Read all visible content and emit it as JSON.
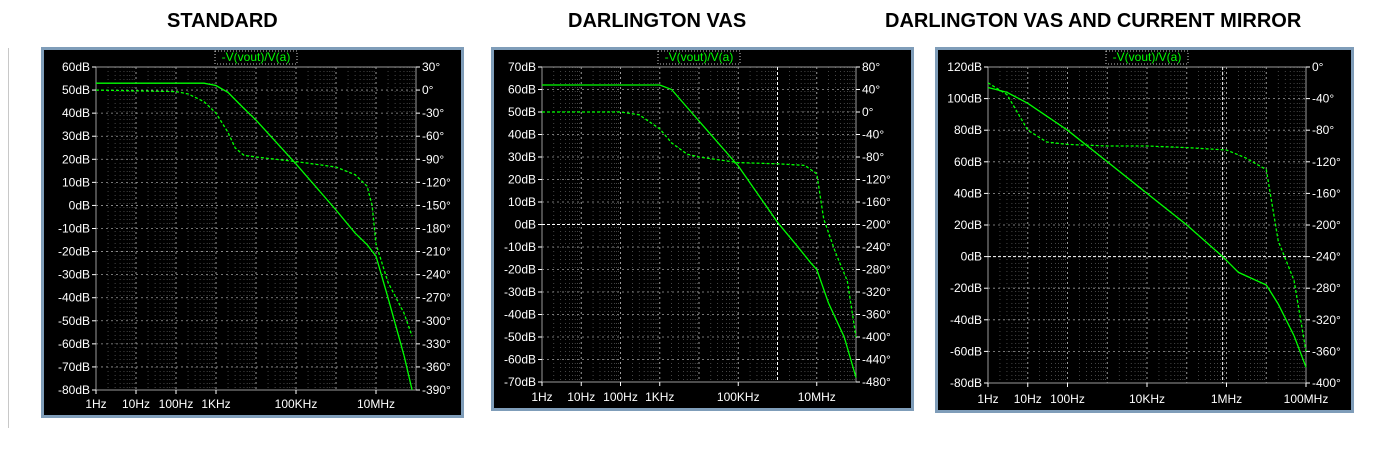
{
  "titles": [
    "STANDARD",
    "DARLINGTON VAS",
    "DARLINGTON VAS AND CURRENT MIRROR"
  ],
  "colors": {
    "background": "#000000",
    "frame": "#7f9db9",
    "grid": "#9a9a9a",
    "text": "#ffffff",
    "trace": "#00ff00",
    "crosshair": "#ffffff"
  },
  "chart_data": [
    {
      "type": "line",
      "title": "-V(vout)/V(a)",
      "x_scale": "log",
      "xlim": [
        1,
        100000000
      ],
      "x_ticks": [
        {
          "v": 1,
          "label": "1Hz"
        },
        {
          "v": 10,
          "label": "10Hz"
        },
        {
          "v": 100,
          "label": "100Hz"
        },
        {
          "v": 1000,
          "label": "1KHz"
        },
        {
          "v": 100000,
          "label": "100KHz"
        },
        {
          "v": 10000000,
          "label": "10MHz"
        }
      ],
      "ylim_left": [
        -80,
        60
      ],
      "ylim_right": [
        -390,
        30
      ],
      "y_ticks_left": [
        "60dB",
        "50dB",
        "40dB",
        "30dB",
        "20dB",
        "10dB",
        "0dB",
        "-10dB",
        "-20dB",
        "-30dB",
        "-40dB",
        "-50dB",
        "-60dB",
        "-70dB",
        "-80dB"
      ],
      "y_ticks_right": [
        "30°",
        "0°",
        "-30°",
        "-60°",
        "-90°",
        "-120°",
        "-150°",
        "-180°",
        "-210°",
        "-240°",
        "-270°",
        "-300°",
        "-330°",
        "-360°",
        "-390°"
      ],
      "crosshair": null,
      "series": [
        {
          "style": "solid",
          "axis": "left",
          "points": [
            [
              1,
              53
            ],
            [
              500,
              53
            ],
            [
              1000,
              52
            ],
            [
              2000,
              49
            ],
            [
              5000,
              42
            ],
            [
              10000,
              37
            ],
            [
              100000,
              18
            ],
            [
              1000000,
              -2
            ],
            [
              3000000,
              -12
            ],
            [
              6000000,
              -17
            ],
            [
              10000000,
              -22
            ],
            [
              20000000,
              -40
            ],
            [
              50000000,
              -65
            ],
            [
              80000000,
              -80
            ]
          ]
        },
        {
          "style": "dashed",
          "axis": "right",
          "points": [
            [
              1,
              0
            ],
            [
              100,
              -2
            ],
            [
              200,
              -5
            ],
            [
              500,
              -15
            ],
            [
              1000,
              -30
            ],
            [
              2000,
              -55
            ],
            [
              3000,
              -75
            ],
            [
              5000,
              -85
            ],
            [
              10000,
              -87
            ],
            [
              100000,
              -93
            ],
            [
              1000000,
              -100
            ],
            [
              3000000,
              -110
            ],
            [
              6000000,
              -125
            ],
            [
              8000000,
              -150
            ],
            [
              10000000,
              -200
            ],
            [
              20000000,
              -250
            ],
            [
              50000000,
              -290
            ],
            [
              80000000,
              -320
            ]
          ]
        }
      ]
    },
    {
      "type": "line",
      "title": "-V(vout)/V(a)",
      "x_scale": "log",
      "xlim": [
        1,
        100000000
      ],
      "x_ticks": [
        {
          "v": 1,
          "label": "1Hz"
        },
        {
          "v": 10,
          "label": "10Hz"
        },
        {
          "v": 100,
          "label": "100Hz"
        },
        {
          "v": 1000,
          "label": "1KHz"
        },
        {
          "v": 100000,
          "label": "100KHz"
        },
        {
          "v": 10000000,
          "label": "10MHz"
        }
      ],
      "ylim_left": [
        -70,
        70
      ],
      "ylim_right": [
        -480,
        80
      ],
      "y_ticks_left": [
        "70dB",
        "60dB",
        "50dB",
        "40dB",
        "30dB",
        "20dB",
        "10dB",
        "0dB",
        "-10dB",
        "-20dB",
        "-30dB",
        "-40dB",
        "-50dB",
        "-60dB",
        "-70dB"
      ],
      "y_ticks_right": [
        "80°",
        "40°",
        "0°",
        "-40°",
        "-80°",
        "-120°",
        "-160°",
        "-200°",
        "-240°",
        "-280°",
        "-320°",
        "-360°",
        "-400°",
        "-440°",
        "-480°"
      ],
      "crosshair": {
        "x": 1000000,
        "y": 0
      },
      "series": [
        {
          "style": "solid",
          "axis": "left",
          "points": [
            [
              1,
              62
            ],
            [
              1000,
              62
            ],
            [
              2000,
              60
            ],
            [
              5000,
              52
            ],
            [
              10000,
              46
            ],
            [
              100000,
              26
            ],
            [
              1000000,
              1
            ],
            [
              3000000,
              -9
            ],
            [
              7000000,
              -17
            ],
            [
              10000000,
              -20
            ],
            [
              20000000,
              -35
            ],
            [
              50000000,
              -50
            ],
            [
              100000000,
              -68
            ]
          ]
        },
        {
          "style": "dashed",
          "axis": "right",
          "points": [
            [
              1,
              0
            ],
            [
              100,
              0
            ],
            [
              300,
              -5
            ],
            [
              1000,
              -30
            ],
            [
              2000,
              -55
            ],
            [
              5000,
              -75
            ],
            [
              10000,
              -80
            ],
            [
              100000,
              -90
            ],
            [
              1000000,
              -92
            ],
            [
              5000000,
              -95
            ],
            [
              10000000,
              -110
            ],
            [
              15000000,
              -190
            ],
            [
              30000000,
              -250
            ],
            [
              60000000,
              -300
            ],
            [
              100000000,
              -400
            ]
          ]
        }
      ]
    },
    {
      "type": "line",
      "title": "-V(vout)/V(a)",
      "x_scale": "log",
      "xlim": [
        1,
        100000000
      ],
      "x_ticks": [
        {
          "v": 1,
          "label": "1Hz"
        },
        {
          "v": 10,
          "label": "10Hz"
        },
        {
          "v": 100,
          "label": "100Hz"
        },
        {
          "v": 10000,
          "label": "10KHz"
        },
        {
          "v": 1000000,
          "label": "1MHz"
        },
        {
          "v": 100000000,
          "label": "100MHz"
        }
      ],
      "ylim_left": [
        -80,
        120
      ],
      "ylim_right": [
        -400,
        0
      ],
      "y_ticks_left": [
        "120dB",
        "100dB",
        "80dB",
        "60dB",
        "40dB",
        "20dB",
        "0dB",
        "-20dB",
        "-40dB",
        "-60dB",
        "-80dB"
      ],
      "y_ticks_right": [
        "0°",
        "-40°",
        "-80°",
        "-120°",
        "-160°",
        "-200°",
        "-240°",
        "-280°",
        "-320°",
        "-360°",
        "-400°"
      ],
      "crosshair": {
        "x": 800000,
        "y": 0
      },
      "series": [
        {
          "style": "solid",
          "axis": "left",
          "points": [
            [
              1,
              107
            ],
            [
              3,
              104
            ],
            [
              10,
              97
            ],
            [
              100,
              80
            ],
            [
              1000,
              60
            ],
            [
              10000,
              40
            ],
            [
              100000,
              20
            ],
            [
              800000,
              0
            ],
            [
              2000000,
              -10
            ],
            [
              10000000,
              -18
            ],
            [
              20000000,
              -30
            ],
            [
              50000000,
              -50
            ],
            [
              100000000,
              -70
            ]
          ]
        },
        {
          "style": "dashed",
          "axis": "right",
          "points": [
            [
              1,
              -20
            ],
            [
              3,
              -35
            ],
            [
              10,
              -80
            ],
            [
              30,
              -95
            ],
            [
              100,
              -98
            ],
            [
              1000,
              -100
            ],
            [
              10000,
              -100
            ],
            [
              100000,
              -102
            ],
            [
              1000000,
              -105
            ],
            [
              3000000,
              -115
            ],
            [
              10000000,
              -130
            ],
            [
              20000000,
              -220
            ],
            [
              50000000,
              -270
            ],
            [
              100000000,
              -360
            ]
          ]
        }
      ]
    }
  ]
}
